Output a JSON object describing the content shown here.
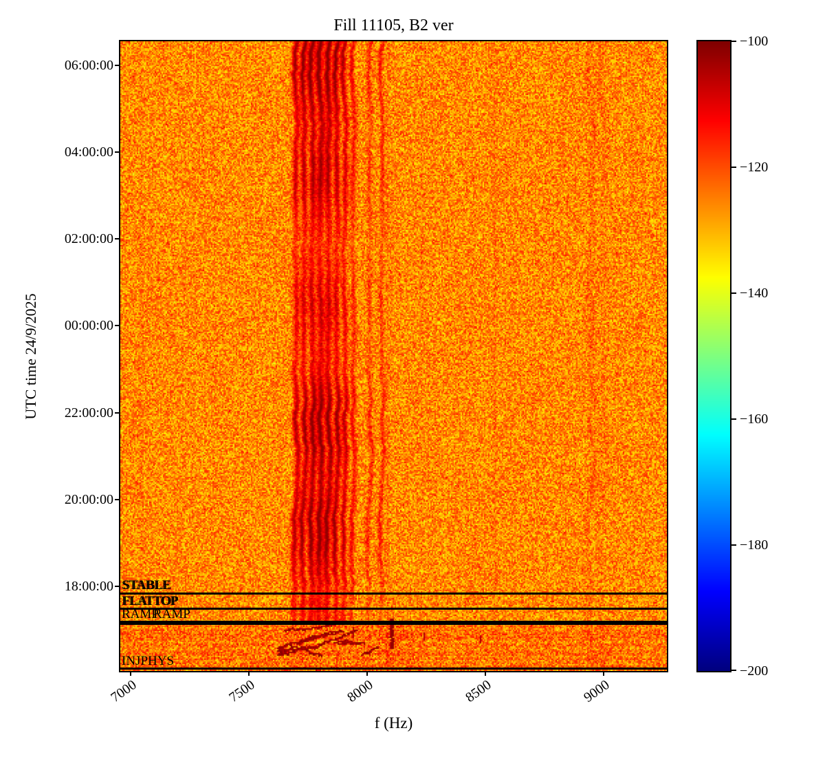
{
  "chart_data": {
    "type": "heatmap",
    "subtype": "spectrogram",
    "title": "Fill 11105, B2 ver",
    "xlabel": "f (Hz)",
    "ylabel": "UTC time 24/9/2025",
    "colormap": "jet",
    "x_range_hz": [
      6956,
      9267
    ],
    "x_ticks": [
      7000,
      7500,
      8000,
      8500,
      9000
    ],
    "x_tick_labels": [
      "7000",
      "7500",
      "8000",
      "8500",
      "9000"
    ],
    "y_tick_labels": [
      "06:00:00",
      "04:00:00",
      "02:00:00",
      "00:00:00",
      "22:00:00",
      "20:00:00",
      "18:00:00"
    ],
    "y_axis_range_utc_approx": [
      "24/9 16:05",
      "25/9 06:33"
    ],
    "colorbar": {
      "vmin": -200,
      "vmax": -100,
      "tick_labels": [
        "−100",
        "−120",
        "−140",
        "−160",
        "−180",
        "−200"
      ]
    },
    "background_level_db": {
      "mean": -126,
      "spread": 9
    },
    "vertical_bands_hz": [
      {
        "f": 7697,
        "s": 0.8,
        "w": 9
      },
      {
        "f": 7731,
        "s": 0.9,
        "w": 9
      },
      {
        "f": 7766,
        "s": 0.97,
        "w": 10
      },
      {
        "f": 7800,
        "s": 1.0,
        "w": 11
      },
      {
        "f": 7834,
        "s": 0.97,
        "w": 10
      },
      {
        "f": 7869,
        "s": 0.9,
        "w": 9
      },
      {
        "f": 7903,
        "s": 0.78,
        "w": 8
      },
      {
        "f": 7938,
        "s": 0.55,
        "w": 7
      },
      {
        "f": 8008,
        "s": 0.4,
        "w": 6
      },
      {
        "f": 8060,
        "s": 0.45,
        "w": 6
      }
    ],
    "faint_lines_hz": [
      {
        "f": 7043,
        "s": 0.07,
        "w": 5,
        "wiggle": 0
      },
      {
        "f": 8085,
        "s": 0.1,
        "w": 5,
        "wiggle": 0
      },
      {
        "f": 8230,
        "s": 0.07,
        "w": 5,
        "wiggle": 0
      },
      {
        "f": 8540,
        "s": 0.1,
        "w": 5,
        "wiggle": 0
      },
      {
        "f": 8945,
        "s": 0.17,
        "w": 8,
        "wiggle": 1
      },
      {
        "f": 8995,
        "s": 0.07,
        "w": 10,
        "wiggle": 1
      }
    ],
    "beam_modes": [
      {
        "label": "STABLE",
        "time_utc_approx": "17:51"
      },
      {
        "label": "FLATTOP",
        "time_utc_approx": "17:29"
      },
      {
        "label": "RAMP",
        "time_utc_approx": "17:11"
      },
      {
        "label": "RAMP",
        "time_utc_approx": "17:07"
      },
      {
        "label": "INJPHYS",
        "time_utc_approx": "16:06"
      }
    ]
  }
}
